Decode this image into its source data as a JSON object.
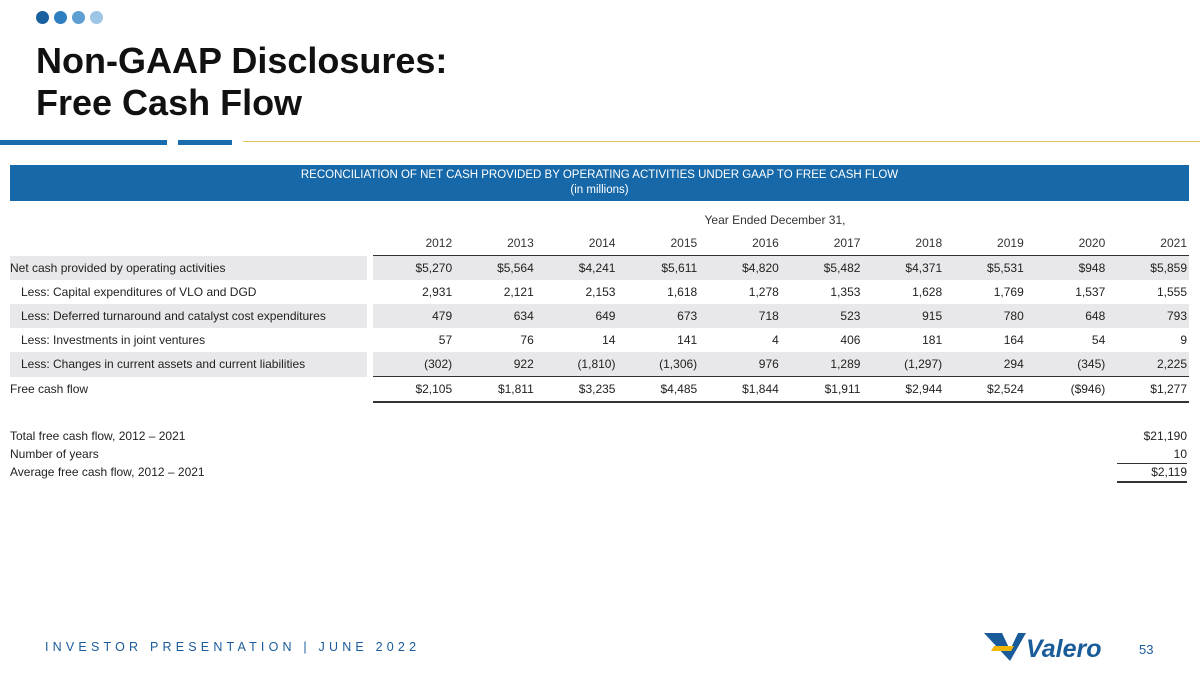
{
  "colors": {
    "dots": [
      "#1a5f9e",
      "#2e7fc0",
      "#5d9fd3",
      "#9cc5e6"
    ],
    "banner": "#1668a8",
    "shade": "#e8e8ea",
    "accent_gold": "#e6c75a",
    "brand_blue": "#1a5b9a",
    "brand_gold": "#f2b705"
  },
  "title": {
    "line1": "Non-GAAP Disclosures:",
    "line2": "Free Cash Flow"
  },
  "banner": {
    "line1": "RECONCILIATION OF NET CASH PROVIDED BY OPERATING ACTIVITIES UNDER GAAP TO FREE CASH FLOW",
    "line2": "(in millions)"
  },
  "table": {
    "group_header": "Year Ended December 31,",
    "years": [
      "2012",
      "2013",
      "2014",
      "2015",
      "2016",
      "2017",
      "2018",
      "2019",
      "2020",
      "2021"
    ],
    "rows": [
      {
        "label": "Net cash provided by operating activities",
        "values": [
          "$5,270",
          "$5,564",
          "$4,241",
          "$5,611",
          "$4,820",
          "$5,482",
          "$4,371",
          "$5,531",
          "$948",
          "$5,859"
        ]
      },
      {
        "label": "Less:  Capital expenditures of VLO and DGD",
        "values": [
          "2,931",
          "2,121",
          "2,153",
          "1,618",
          "1,278",
          "1,353",
          "1,628",
          "1,769",
          "1,537",
          "1,555"
        ]
      },
      {
        "label": "Less:  Deferred turnaround and catalyst cost expenditures",
        "values": [
          "479",
          "634",
          "649",
          "673",
          "718",
          "523",
          "915",
          "780",
          "648",
          "793"
        ]
      },
      {
        "label": "Less:  Investments in joint ventures",
        "values": [
          "57",
          "76",
          "14",
          "141",
          "4",
          "406",
          "181",
          "164",
          "54",
          "9"
        ]
      },
      {
        "label": "Less:  Changes in current assets and current liabilities",
        "values": [
          "(302)",
          "922",
          "(1,810)",
          "(1,306)",
          "976",
          "1,289",
          "(1,297)",
          "294",
          "(345)",
          "2,225"
        ]
      },
      {
        "label": "Free cash flow",
        "values": [
          "$2,105",
          "$1,811",
          "$3,235",
          "$4,485",
          "$1,844",
          "$1,911",
          "$2,944",
          "$2,524",
          "($946)",
          "$1,277"
        ]
      }
    ]
  },
  "summary": [
    {
      "label": "Total free cash flow, 2012 – 2021",
      "value": "$21,190"
    },
    {
      "label": "Number of years",
      "value": "10"
    },
    {
      "label": "Average free cash flow, 2012 – 2021",
      "value": "$2,119"
    }
  ],
  "footer": {
    "text": "INVESTOR PRESENTATION | JUNE 2022",
    "page_number": "53"
  },
  "logo": {
    "text": "Valero",
    "icon": "valero-v-logo-icon"
  }
}
